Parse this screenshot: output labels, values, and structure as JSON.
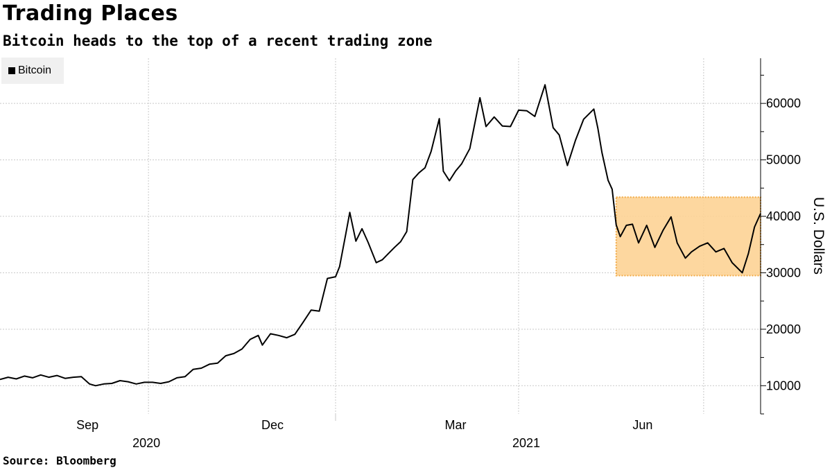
{
  "header": {
    "title": "Trading Places",
    "subtitle": "Bitcoin heads to the top of a recent trading zone"
  },
  "footer": {
    "source": "Source: Bloomberg"
  },
  "chart_data": {
    "type": "line",
    "title": "Trading Places",
    "subtitle": "Bitcoin heads to the top of a recent trading zone",
    "xlabel": "",
    "ylabel": "U.S. Dollars",
    "ylim": [
      5000,
      68000
    ],
    "xlim": [
      "2020-07-20",
      "2021-07-29"
    ],
    "y_ticks": [
      10000,
      20000,
      30000,
      40000,
      50000,
      60000
    ],
    "x_ticks": [
      {
        "date": "2020-09-01",
        "label": "Sep"
      },
      {
        "date": "2020-12-01",
        "label": "Dec"
      },
      {
        "date": "2021-03-01",
        "label": "Mar"
      },
      {
        "date": "2021-06-01",
        "label": "Jun"
      }
    ],
    "year_labels": [
      {
        "date": "2020-09-01",
        "label": "2020"
      },
      {
        "date": "2021-03-01",
        "label": "2021"
      }
    ],
    "y_axis_side": "right",
    "grid": true,
    "legend": {
      "position": "top-left",
      "entries": [
        "Bitcoin"
      ]
    },
    "colors": {
      "line": "#000000",
      "zone_fill": "#fdd395",
      "zone_border": "#f0a030"
    },
    "highlight_zone": {
      "x_start": "2021-05-19",
      "x_end": "2021-07-29",
      "y_min": 29500,
      "y_max": 43400
    },
    "series": [
      {
        "name": "Bitcoin",
        "x": [
          "2020-07-20",
          "2020-07-24",
          "2020-07-28",
          "2020-08-01",
          "2020-08-05",
          "2020-08-09",
          "2020-08-13",
          "2020-08-17",
          "2020-08-21",
          "2020-08-25",
          "2020-08-29",
          "2020-09-02",
          "2020-09-05",
          "2020-09-09",
          "2020-09-13",
          "2020-09-17",
          "2020-09-21",
          "2020-09-25",
          "2020-09-29",
          "2020-10-03",
          "2020-10-07",
          "2020-10-11",
          "2020-10-15",
          "2020-10-19",
          "2020-10-23",
          "2020-10-27",
          "2020-10-31",
          "2020-11-04",
          "2020-11-08",
          "2020-11-12",
          "2020-11-16",
          "2020-11-20",
          "2020-11-24",
          "2020-11-26",
          "2020-11-30",
          "2020-12-04",
          "2020-12-08",
          "2020-12-12",
          "2020-12-16",
          "2020-12-20",
          "2020-12-24",
          "2020-12-28",
          "2021-01-01",
          "2021-01-03",
          "2021-01-06",
          "2021-01-08",
          "2021-01-11",
          "2021-01-14",
          "2021-01-17",
          "2021-01-21",
          "2021-01-24",
          "2021-01-27",
          "2021-01-30",
          "2021-02-02",
          "2021-02-05",
          "2021-02-08",
          "2021-02-11",
          "2021-02-14",
          "2021-02-17",
          "2021-02-21",
          "2021-02-23",
          "2021-02-26",
          "2021-03-01",
          "2021-03-04",
          "2021-03-08",
          "2021-03-13",
          "2021-03-16",
          "2021-03-20",
          "2021-03-24",
          "2021-03-28",
          "2021-04-01",
          "2021-04-05",
          "2021-04-09",
          "2021-04-14",
          "2021-04-18",
          "2021-04-21",
          "2021-04-25",
          "2021-04-29",
          "2021-05-03",
          "2021-05-08",
          "2021-05-10",
          "2021-05-12",
          "2021-05-15",
          "2021-05-17",
          "2021-05-19",
          "2021-05-21",
          "2021-05-24",
          "2021-05-27",
          "2021-05-30",
          "2021-06-03",
          "2021-06-07",
          "2021-06-11",
          "2021-06-15",
          "2021-06-18",
          "2021-06-22",
          "2021-06-25",
          "2021-06-29",
          "2021-07-03",
          "2021-07-07",
          "2021-07-11",
          "2021-07-15",
          "2021-07-20",
          "2021-07-23",
          "2021-07-26",
          "2021-07-29"
        ],
        "y": [
          11100,
          11500,
          11200,
          11700,
          11400,
          11900,
          11500,
          11800,
          11300,
          11500,
          11600,
          10300,
          10000,
          10300,
          10400,
          10900,
          10700,
          10300,
          10600,
          10600,
          10400,
          10700,
          11400,
          11600,
          12900,
          13100,
          13800,
          14000,
          15300,
          15700,
          16500,
          18200,
          18900,
          17200,
          19200,
          18900,
          18500,
          19100,
          21200,
          23400,
          23200,
          29000,
          29300,
          31100,
          36800,
          40700,
          35600,
          37800,
          35400,
          31800,
          32300,
          33400,
          34500,
          35500,
          37300,
          46500,
          47700,
          48600,
          51500,
          57300,
          48000,
          46300,
          48000,
          49300,
          52000,
          61000,
          55900,
          57600,
          56000,
          55900,
          58800,
          58700,
          57700,
          63300,
          55700,
          54400,
          49000,
          53500,
          57200,
          59000,
          55600,
          51300,
          46400,
          44800,
          38500,
          36400,
          38400,
          38600,
          35300,
          38400,
          34500,
          37500,
          39900,
          35300,
          32600,
          33700,
          34700,
          35300,
          33700,
          34300,
          31800,
          30000,
          33400,
          38100,
          40500
        ]
      }
    ]
  }
}
